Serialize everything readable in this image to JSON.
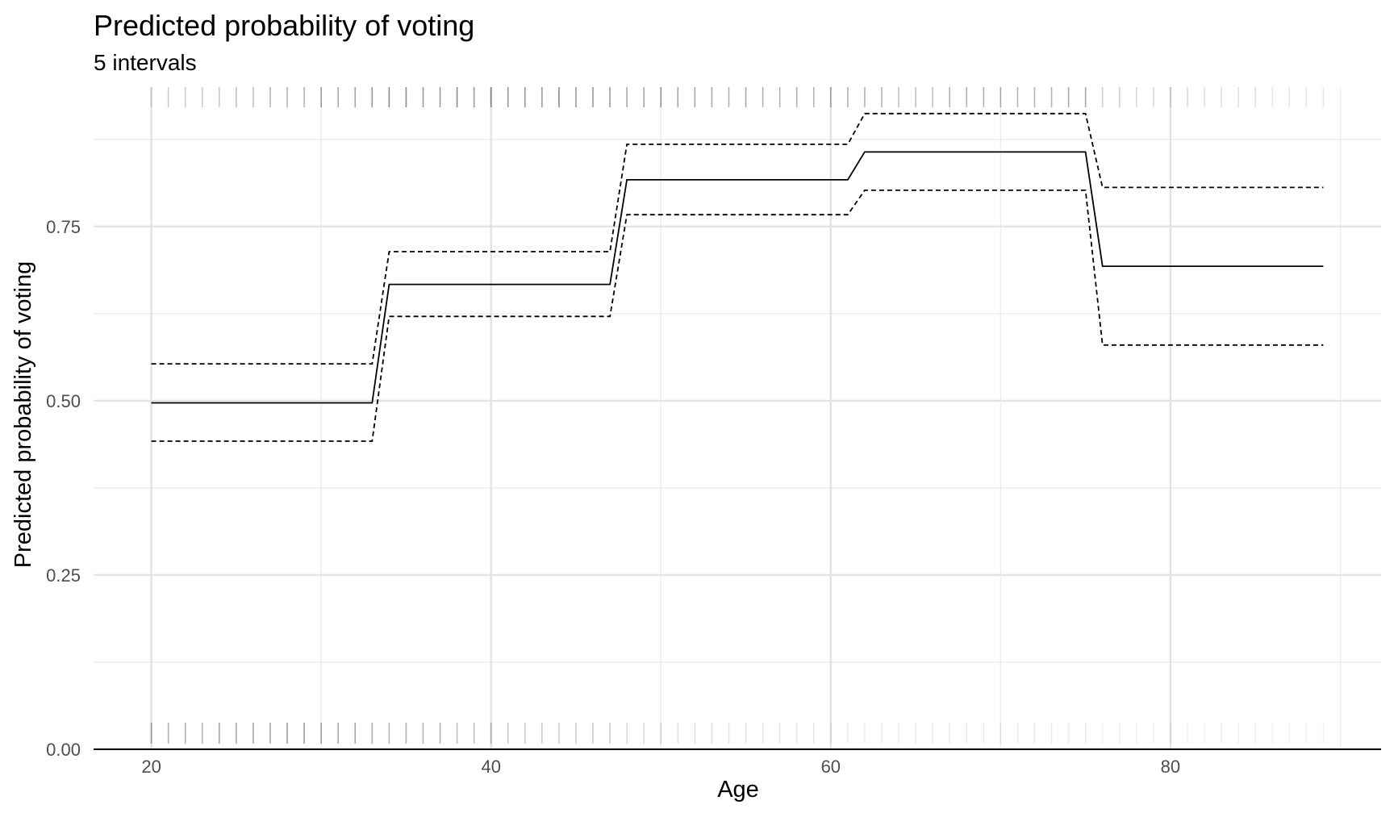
{
  "chart_data": {
    "type": "line",
    "title": "Predicted probability of voting",
    "subtitle": "5 intervals",
    "xlabel": "Age",
    "ylabel": "Predicted probability of voting",
    "xlim": [
      16.6,
      92.4
    ],
    "ylim": [
      0,
      0.95
    ],
    "x_ticks": [
      20,
      40,
      60,
      80
    ],
    "x_tick_labels": [
      "20",
      "40",
      "60",
      "80"
    ],
    "y_ticks": [
      0,
      0.25,
      0.5,
      0.75
    ],
    "y_tick_labels": [
      "0.00",
      "0.25",
      "0.50",
      "0.75"
    ],
    "grid": true,
    "legend": "none",
    "series": [
      {
        "style": "solid",
        "x": [
          20,
          33,
          34,
          47,
          48,
          61,
          62,
          75,
          76,
          89
        ],
        "y": [
          0.497,
          0.497,
          0.667,
          0.667,
          0.817,
          0.817,
          0.857,
          0.857,
          0.693,
          0.693
        ]
      },
      {
        "style": "dashed",
        "x": [
          20,
          33,
          34,
          47,
          48,
          61,
          62,
          75,
          76,
          89
        ],
        "y": [
          0.553,
          0.553,
          0.714,
          0.714,
          0.868,
          0.868,
          0.912,
          0.912,
          0.806,
          0.806
        ]
      },
      {
        "style": "dashed",
        "x": [
          20,
          33,
          34,
          47,
          48,
          61,
          62,
          75,
          76,
          89
        ],
        "y": [
          0.442,
          0.442,
          0.621,
          0.621,
          0.767,
          0.767,
          0.802,
          0.802,
          0.58,
          0.58
        ]
      }
    ],
    "rug_ages": [
      20,
      21,
      22,
      23,
      24,
      25,
      26,
      27,
      28,
      29,
      30,
      31,
      32,
      33,
      34,
      35,
      36,
      37,
      38,
      39,
      40,
      41,
      42,
      43,
      44,
      45,
      46,
      47,
      48,
      49,
      50,
      51,
      52,
      53,
      54,
      55,
      56,
      57,
      58,
      59,
      60,
      61,
      62,
      63,
      64,
      65,
      66,
      67,
      68,
      69,
      70,
      71,
      72,
      73,
      74,
      75,
      76,
      77,
      78,
      79,
      80,
      81,
      82,
      83,
      84,
      85,
      86,
      87,
      88,
      89
    ],
    "rug_top_shade": [
      0.15,
      0.2,
      0.2,
      0.2,
      0.2,
      0.25,
      0.25,
      0.3,
      0.3,
      0.3,
      0.35,
      0.35,
      0.35,
      0.4,
      0.45,
      0.45,
      0.4,
      0.4,
      0.45,
      0.4,
      0.45,
      0.4,
      0.4,
      0.4,
      0.45,
      0.4,
      0.4,
      0.4,
      0.35,
      0.35,
      0.4,
      0.35,
      0.35,
      0.35,
      0.3,
      0.35,
      0.3,
      0.3,
      0.3,
      0.3,
      0.3,
      0.3,
      0.3,
      0.3,
      0.25,
      0.25,
      0.25,
      0.3,
      0.3,
      0.3,
      0.3,
      0.3,
      0.3,
      0.3,
      0.35,
      0.35,
      0.2,
      0.2,
      0.15,
      0.15,
      0.15,
      0.15,
      0.12,
      0.12,
      0.12,
      0.12,
      0.1,
      0.1,
      0.1,
      0.1
    ],
    "rug_bottom_shade": [
      0.35,
      0.3,
      0.3,
      0.3,
      0.35,
      0.35,
      0.35,
      0.35,
      0.4,
      0.4,
      0.35,
      0.35,
      0.35,
      0.3,
      0.3,
      0.3,
      0.3,
      0.3,
      0.25,
      0.25,
      0.25,
      0.2,
      0.2,
      0.2,
      0.2,
      0.2,
      0.2,
      0.2,
      0.15,
      0.15,
      0.15,
      0.12,
      0.12,
      0.12,
      0.1,
      0.1,
      0.1,
      0.1,
      0.1,
      0.1,
      0.08,
      0.08,
      0.08,
      0.08,
      0.08,
      0.08,
      0.08,
      0.08,
      0.08,
      0.08,
      0.08,
      0.08,
      0.08,
      0.08,
      0.08,
      0.08,
      0.06,
      0.06,
      0.06,
      0.06,
      0.06,
      0.06,
      0.06,
      0.06,
      0.06,
      0.06,
      0.05,
      0.05,
      0.05,
      0.05
    ]
  }
}
